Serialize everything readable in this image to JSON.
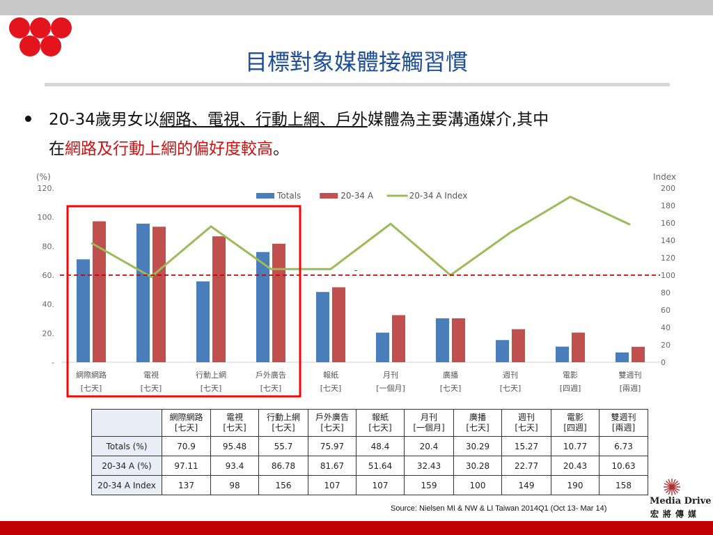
{
  "slide": {
    "title": "目標對象媒體接觸習慣",
    "bullet": {
      "pre": "20-34歲男女以",
      "underlined": "網路、電視、行動上網、戶外",
      "mid": "媒體為主要溝通媒介,其中",
      "line2_pre": "在",
      "line2_red": "網路及行動上網的偏好度較高",
      "line2_end": "。"
    },
    "source": "Source: Nielsen MI & NW & LI Taiwan 2014Q1 (Oct 13- Mar 14)",
    "brand": {
      "name": "Media Drive",
      "sub": "宏將傳媒"
    }
  },
  "chart_data": {
    "type": "bar",
    "categories": [
      "網際網路",
      "電視",
      "行動上網",
      "戶外廣告",
      "報紙",
      "月刊",
      "廣播",
      "週刊",
      "電影",
      "雙週刊"
    ],
    "periods": [
      "[七天]",
      "[七天]",
      "[七天]",
      "[七天]",
      "[七天]",
      "[一個月]",
      "[七天]",
      "[七天]",
      "[四週]",
      "[兩週]"
    ],
    "series": [
      {
        "name": "Totals",
        "type": "bar",
        "axis": "left",
        "color": "#4a7ebb",
        "values": [
          70.9,
          95.48,
          55.7,
          75.97,
          48.4,
          20.4,
          30.29,
          15.27,
          10.77,
          6.73
        ]
      },
      {
        "name": "20-34 A",
        "type": "bar",
        "axis": "left",
        "color": "#c0504d",
        "values": [
          97.11,
          93.4,
          86.78,
          81.67,
          51.64,
          32.43,
          30.28,
          22.77,
          20.43,
          10.63
        ]
      },
      {
        "name": "20-34 A Index",
        "type": "line",
        "axis": "right",
        "color": "#9bbb59",
        "values": [
          137,
          98,
          156,
          107,
          107,
          159,
          100,
          149,
          190,
          158
        ]
      }
    ],
    "ylabel_left": "(%)",
    "ylabel_right": "Index",
    "ylim_left": [
      0,
      120
    ],
    "ylim_right": [
      0,
      200
    ],
    "yticks_left": [
      "-",
      "20.",
      "40.",
      "60.",
      "80.",
      "100.",
      "120."
    ],
    "yticks_right": [
      "0",
      "20",
      "40",
      "60",
      "80",
      "100",
      "120",
      "140",
      "160",
      "180",
      "200"
    ],
    "reference_line": {
      "value": 100,
      "axis": "right",
      "color": "#cc0000",
      "style": "dashed"
    },
    "stray_mark": "-",
    "highlight_box": {
      "from_category": 0,
      "to_category": 3,
      "color": "#ff0000"
    },
    "legend_position": "top-center",
    "grid": false
  },
  "table": {
    "header_blank": "",
    "rows": [
      {
        "label": "Totals (%)",
        "values": [
          "70.9",
          "95.48",
          "55.7",
          "75.97",
          "48.4",
          "20.4",
          "30.29",
          "15.27",
          "10.77",
          "6.73"
        ]
      },
      {
        "label": "20-34 A (%)",
        "values": [
          "97.11",
          "93.4",
          "86.78",
          "81.67",
          "51.64",
          "32.43",
          "30.28",
          "22.77",
          "20.43",
          "10.63"
        ]
      },
      {
        "label": "20-34 A Index",
        "values": [
          "137",
          "98",
          "156",
          "107",
          "107",
          "159",
          "100",
          "149",
          "190",
          "158"
        ]
      }
    ]
  }
}
